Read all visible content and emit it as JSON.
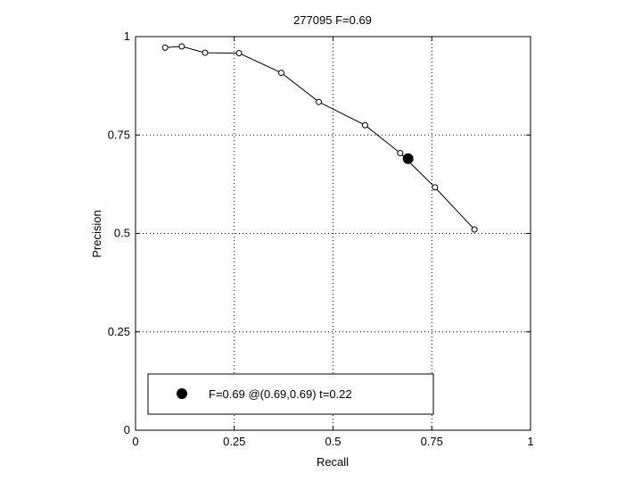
{
  "chart_data": {
    "type": "line",
    "title": "277095 F=0.69",
    "xlabel": "Recall",
    "ylabel": "Precision",
    "xlim": [
      0,
      1
    ],
    "ylim": [
      0,
      1
    ],
    "xticks": [
      0,
      0.25,
      0.5,
      0.75,
      1
    ],
    "yticks": [
      0,
      0.25,
      0.5,
      0.75,
      1
    ],
    "xtick_labels": [
      "0",
      "0.25",
      "0.5",
      "0.75",
      "1"
    ],
    "ytick_labels": [
      "0",
      "0.25",
      "0.5",
      "0.75",
      "1"
    ],
    "grid": true,
    "series": [
      {
        "x": [
          0.075,
          0.117,
          0.176,
          0.262,
          0.369,
          0.464,
          0.581,
          0.67,
          0.758,
          0.858
        ],
        "y": [
          0.972,
          0.975,
          0.959,
          0.958,
          0.908,
          0.834,
          0.775,
          0.704,
          0.617,
          0.51
        ],
        "marker": "open-circle",
        "color": "#000000"
      }
    ],
    "best_point": {
      "x": 0.69,
      "y": 0.69,
      "marker": "filled-circle",
      "color": "#000000"
    },
    "legend": {
      "position": "bottom-left",
      "entries": [
        "F=0.69 @(0.69,0.69) t=0.22"
      ]
    }
  }
}
